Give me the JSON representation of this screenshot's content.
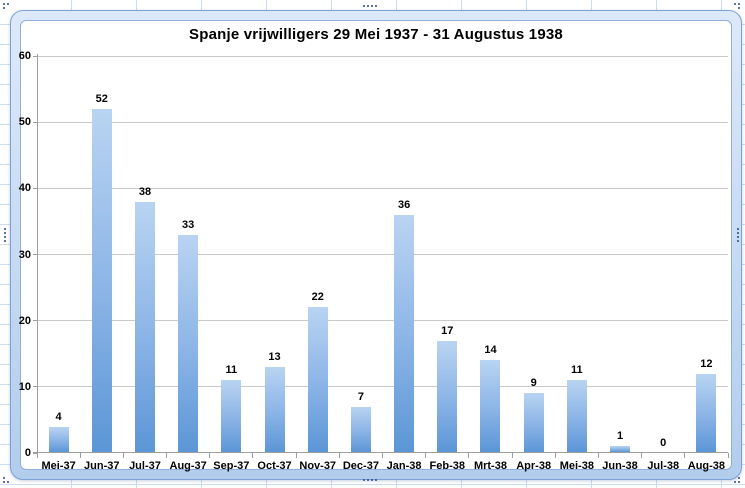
{
  "chart_data": {
    "type": "bar",
    "title": "Spanje vrijwilligers 29 Mei 1937 - 31 Augustus 1938",
    "categories": [
      "Mei-37",
      "Jun-37",
      "Jul-37",
      "Aug-37",
      "Sep-37",
      "Oct-37",
      "Nov-37",
      "Dec-37",
      "Jan-38",
      "Feb-38",
      "Mrt-38",
      "Apr-38",
      "Mei-38",
      "Jun-38",
      "Jul-38",
      "Aug-38"
    ],
    "values": [
      4,
      52,
      38,
      33,
      11,
      13,
      22,
      7,
      36,
      17,
      14,
      9,
      11,
      1,
      0,
      12
    ],
    "data_labels_shown": true,
    "xlabel": "",
    "ylabel": "",
    "ylim": [
      0,
      60
    ],
    "yticks": [
      0,
      10,
      20,
      30,
      40,
      50,
      60
    ],
    "grid": "horizontal",
    "legend": "none"
  },
  "colors": {
    "bar_top": "#b9d4f2",
    "bar_mid": "#8ab3e6",
    "bar_bottom": "#5b96d6",
    "gridline": "#c9c9c9",
    "axis": "#9e9e9e",
    "frame_band_top": "#dde9f8",
    "frame_band_bottom": "#b2cdec",
    "frame_outline": "#7ca1d4",
    "handle_dot": "#2b4a7e",
    "sheet_gridline": "#cddcf0",
    "chart_bg": "#ffffff"
  }
}
